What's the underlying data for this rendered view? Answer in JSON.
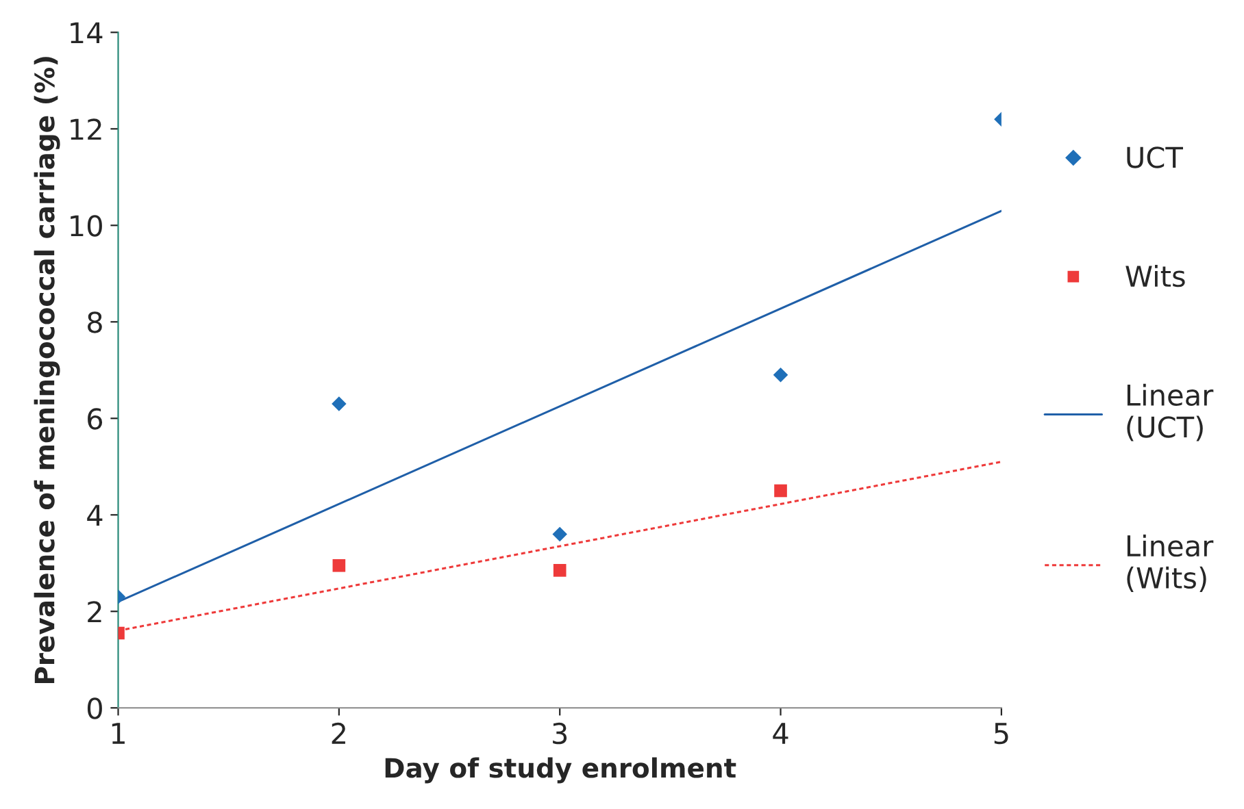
{
  "chart_data": {
    "type": "scatter",
    "xlabel": "Day of study enrolment",
    "ylabel": "Prevalence of meningococcal carriage (%)",
    "x": [
      1,
      2,
      3,
      4,
      5
    ],
    "series": [
      {
        "name": "UCT",
        "color": "#1f6fb8",
        "marker": "diamond",
        "values": [
          2.3,
          6.3,
          3.6,
          6.9,
          12.2
        ]
      },
      {
        "name": "Wits",
        "color": "#ee3a3a",
        "marker": "square",
        "x": [
          1,
          2,
          3,
          4
        ],
        "values": [
          1.55,
          2.95,
          2.85,
          4.5
        ]
      },
      {
        "name": "Linear\n(UCT)",
        "type": "line",
        "color": "#1f5fa8",
        "marker": "none",
        "line_style": "solid",
        "x": [
          1,
          5
        ],
        "values": [
          2.2,
          10.3
        ]
      },
      {
        "name": "Linear\n(Wits)",
        "type": "line",
        "color": "#ee3a3a",
        "marker": "none",
        "line_style": "dotted",
        "x": [
          1,
          5
        ],
        "values": [
          1.6,
          5.1
        ]
      }
    ],
    "xlim": [
      1,
      5
    ],
    "xticks": [
      1,
      2,
      3,
      4,
      5
    ],
    "ylim": [
      0,
      14
    ],
    "yticks": [
      0,
      2,
      4,
      6,
      8,
      10,
      12,
      14
    ],
    "grid": false,
    "legend": "right"
  }
}
